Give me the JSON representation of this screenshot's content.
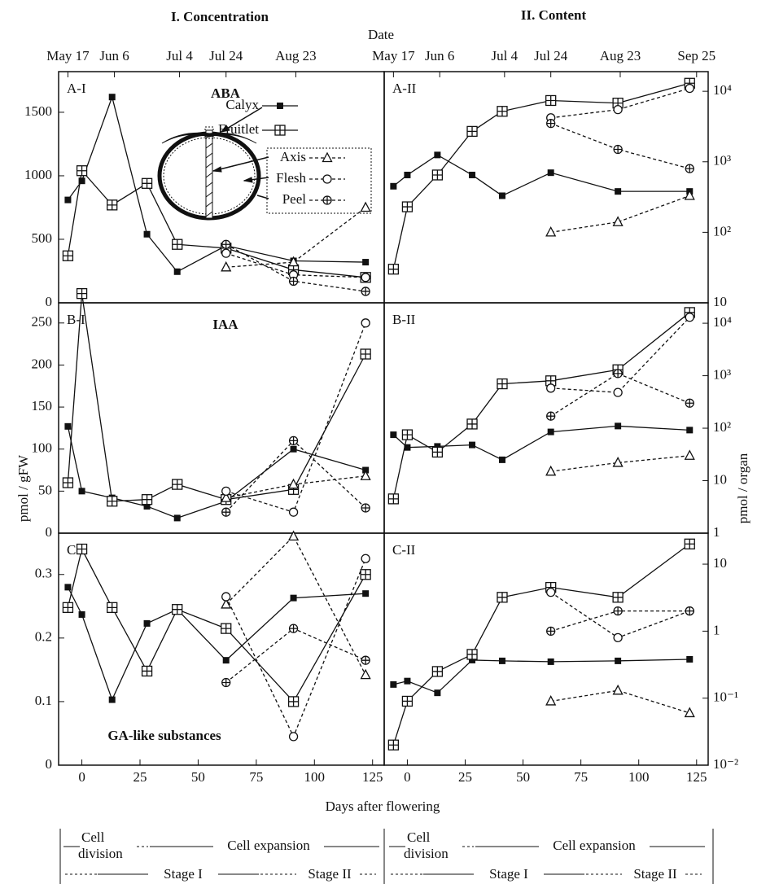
{
  "figure": {
    "column_titles": [
      "I. Concentration",
      "II. Content"
    ],
    "date_label": "Date",
    "date_axes": [
      [
        {
          "value": -6,
          "label": "May 17"
        },
        {
          "value": 14,
          "label": "Jun 6"
        },
        {
          "value": 42,
          "label": "Jul 4"
        },
        {
          "value": 62,
          "label": "Jul 24"
        },
        {
          "value": 92,
          "label": "Aug 23"
        }
      ],
      [
        {
          "value": -6,
          "label": "May 17"
        },
        {
          "value": 14,
          "label": "Jun 6"
        },
        {
          "value": 42,
          "label": "Jul 4"
        },
        {
          "value": 62,
          "label": "Jul 24"
        },
        {
          "value": 92,
          "label": "Aug 23"
        },
        {
          "value": 125,
          "label": "Sep 25"
        }
      ]
    ],
    "xlabel": "Days after flowering",
    "ylabels": [
      "pmol / gFW",
      "pmol / organ"
    ],
    "stages": [
      {
        "cell_division": [
          "Cell",
          "division"
        ],
        "cell_expansion": "Cell expansion",
        "stage_1": "Stage I",
        "stage_2": "Stage II"
      },
      {
        "cell_division": [
          "Cell",
          "division"
        ],
        "cell_expansion": "Cell expansion",
        "stage_1": "Stage I",
        "stage_2": "Stage II"
      }
    ]
  },
  "chart_data": [
    {
      "type": "line",
      "title": "A-I",
      "annotation": "ABA",
      "x": [
        -6,
        0,
        13,
        28,
        41,
        62,
        91,
        122
      ],
      "xlim": [
        -10,
        130
      ],
      "ylim": [
        0,
        1820
      ],
      "yticks": [
        0,
        500,
        1000,
        1500
      ],
      "series": [
        {
          "name": "Calyx",
          "marker": "filled-square",
          "dashed": false,
          "color": "#111111",
          "values": [
            810,
            960,
            1620,
            540,
            245,
            450,
            330,
            320
          ]
        },
        {
          "name": "Fruitlet",
          "marker": "boxed-plus",
          "dashed": false,
          "color": "#111111",
          "values": [
            370,
            1040,
            770,
            940,
            460,
            430,
            260,
            200
          ]
        },
        {
          "name": "Axis",
          "marker": "open-triangle",
          "dashed": true,
          "color": "#111111",
          "values": [
            null,
            null,
            null,
            null,
            null,
            280,
            320,
            750
          ]
        },
        {
          "name": "Flesh",
          "marker": "open-circle",
          "dashed": true,
          "color": "#111111",
          "values": [
            null,
            null,
            null,
            null,
            null,
            390,
            220,
            200
          ]
        },
        {
          "name": "Peel",
          "marker": "circle-plus",
          "dashed": true,
          "color": "#111111",
          "values": [
            null,
            null,
            null,
            null,
            null,
            460,
            170,
            90
          ]
        }
      ]
    },
    {
      "type": "line",
      "title": "A-II",
      "log": true,
      "x": [
        -6,
        0,
        13,
        28,
        41,
        62,
        91,
        122
      ],
      "xlim": [
        -10,
        130
      ],
      "ylim": [
        10,
        19000
      ],
      "yticks": [
        10,
        {
          "value": 100,
          "label": "10²"
        },
        {
          "value": 1000,
          "label": "10³"
        },
        {
          "value": 10000,
          "label": "10⁴"
        }
      ],
      "series": [
        {
          "values": [
            450,
            650,
            1250,
            650,
            330,
            700,
            380,
            380
          ]
        },
        {
          "values": [
            30,
            230,
            650,
            2700,
            5200,
            7400,
            6800,
            13000
          ]
        },
        {
          "values": [
            null,
            null,
            null,
            null,
            null,
            100,
            140,
            330
          ]
        },
        {
          "values": [
            null,
            null,
            null,
            null,
            null,
            4200,
            5500,
            11000
          ]
        },
        {
          "values": [
            null,
            null,
            null,
            null,
            null,
            3500,
            1500,
            800
          ]
        }
      ]
    },
    {
      "type": "line",
      "title": "B-I",
      "annotation": "IAA",
      "x": [
        -6,
        0,
        13,
        28,
        41,
        62,
        91,
        122
      ],
      "xlim": [
        -10,
        130
      ],
      "ylim": [
        0,
        274
      ],
      "yticks": [
        0,
        50,
        100,
        150,
        200,
        250
      ],
      "series": [
        {
          "values": [
            127,
            50,
            42,
            32,
            18,
            38,
            100,
            75
          ]
        },
        {
          "values": [
            60,
            285,
            38,
            40,
            58,
            40,
            52,
            213
          ]
        },
        {
          "values": [
            null,
            null,
            null,
            null,
            null,
            42,
            58,
            68
          ]
        },
        {
          "values": [
            null,
            null,
            null,
            null,
            null,
            50,
            25,
            250
          ]
        },
        {
          "values": [
            null,
            null,
            null,
            null,
            null,
            25,
            110,
            30
          ]
        }
      ]
    },
    {
      "type": "line",
      "title": "B-II",
      "log": true,
      "x": [
        -6,
        0,
        13,
        28,
        41,
        62,
        91,
        122
      ],
      "xlim": [
        -10,
        130
      ],
      "ylim": [
        1,
        24500
      ],
      "yticks": [
        1,
        10,
        {
          "value": 100,
          "label": "10²"
        },
        {
          "value": 1000,
          "label": "10³"
        },
        {
          "value": 10000,
          "label": "10⁴"
        }
      ],
      "series": [
        {
          "values": [
            75,
            43,
            45,
            48,
            25,
            85,
            110,
            92
          ]
        },
        {
          "values": [
            4.5,
            75,
            35,
            120,
            700,
            800,
            1300,
            16000
          ]
        },
        {
          "values": [
            null,
            null,
            null,
            null,
            null,
            15,
            22,
            30
          ]
        },
        {
          "values": [
            null,
            null,
            null,
            null,
            null,
            580,
            480,
            13000
          ]
        },
        {
          "values": [
            null,
            null,
            null,
            null,
            null,
            170,
            1100,
            300
          ]
        }
      ]
    },
    {
      "type": "line",
      "title": "C-I",
      "annotation": "GA-like substances",
      "x": [
        -6,
        0,
        13,
        28,
        41,
        62,
        91,
        122
      ],
      "xlim": [
        -10,
        130
      ],
      "xticks": [
        0,
        25,
        50,
        75,
        100,
        125
      ],
      "ylim": [
        0,
        0.365
      ],
      "yticks": [
        0,
        0.1,
        0.2,
        0.3
      ],
      "series": [
        {
          "values": [
            0.28,
            0.237,
            0.103,
            0.223,
            0.245,
            0.165,
            0.263,
            0.27
          ]
        },
        {
          "values": [
            0.248,
            0.34,
            0.248,
            0.148,
            0.245,
            0.215,
            0.1,
            0.3
          ]
        },
        {
          "values": [
            null,
            null,
            null,
            null,
            null,
            0.253,
            0.36,
            0.142
          ]
        },
        {
          "values": [
            null,
            null,
            null,
            null,
            null,
            0.265,
            0.045,
            0.325
          ]
        },
        {
          "values": [
            null,
            null,
            null,
            null,
            null,
            0.13,
            0.215,
            0.165
          ]
        }
      ]
    },
    {
      "type": "line",
      "title": "C-II",
      "log": true,
      "x": [
        -6,
        0,
        13,
        28,
        41,
        62,
        91,
        122
      ],
      "xlim": [
        -10,
        130
      ],
      "xticks": [
        0,
        25,
        50,
        75,
        100,
        125
      ],
      "ylim": [
        0.01,
        29
      ],
      "yticks": [
        {
          "value": 0.01,
          "label": "10⁻²"
        },
        {
          "value": 0.1,
          "label": "10⁻¹"
        },
        1,
        10
      ],
      "series": [
        {
          "values": [
            0.16,
            0.18,
            0.12,
            0.37,
            0.36,
            0.35,
            0.36,
            0.38
          ]
        },
        {
          "values": [
            0.02,
            0.09,
            0.25,
            0.45,
            3.2,
            4.5,
            3.2,
            20
          ]
        },
        {
          "values": [
            null,
            null,
            null,
            null,
            null,
            0.09,
            0.13,
            0.06
          ]
        },
        {
          "values": [
            null,
            null,
            null,
            null,
            null,
            3.8,
            0.8,
            2
          ]
        },
        {
          "values": [
            null,
            null,
            null,
            null,
            null,
            1.0,
            2.0,
            2
          ]
        }
      ]
    }
  ]
}
